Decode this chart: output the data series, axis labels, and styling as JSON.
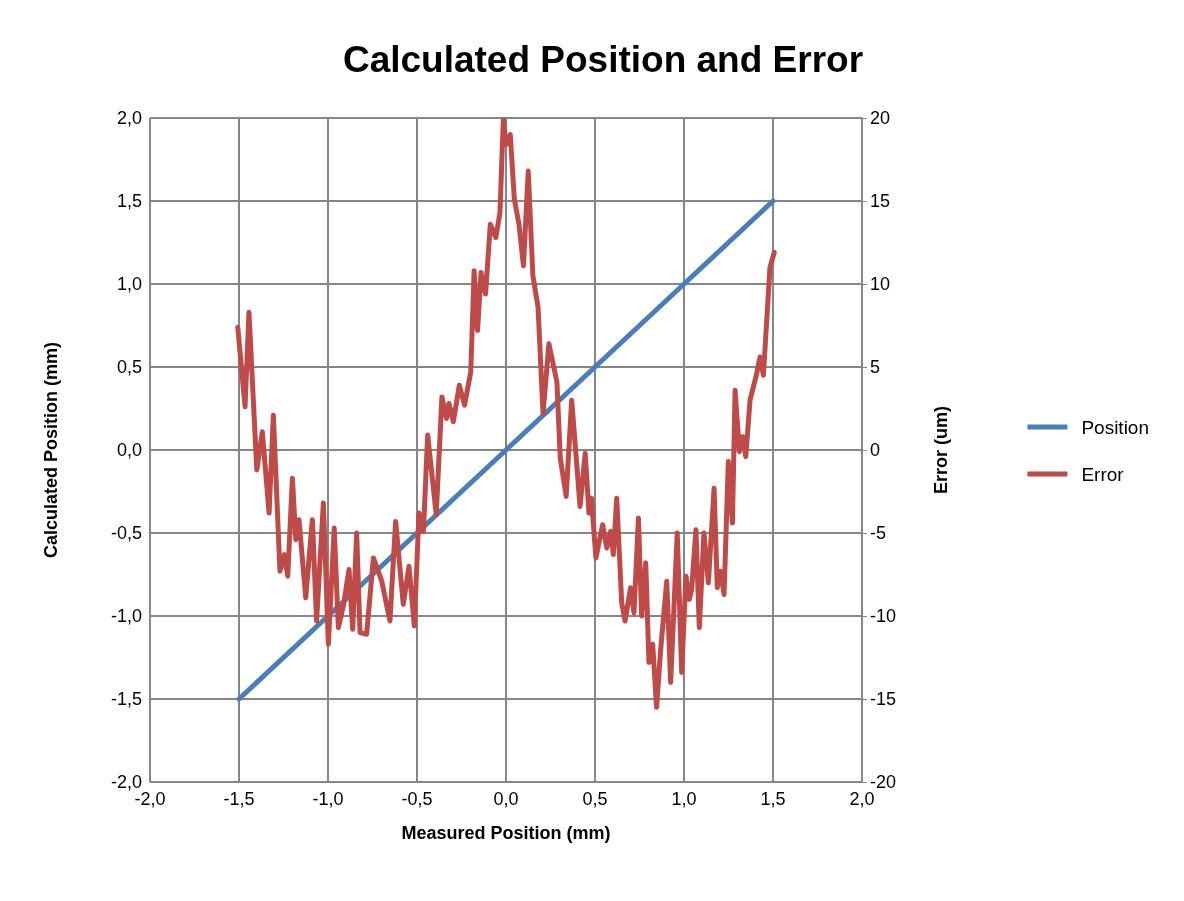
{
  "chart_data": {
    "type": "line",
    "title": "Calculated Position and Error",
    "xlabel": "Measured Position (mm)",
    "ylabel": "Calculated Position (mm)",
    "y2label": "Error (um)",
    "xlim": [
      -2,
      2
    ],
    "ylim": [
      -2,
      2
    ],
    "y2lim": [
      -20,
      20
    ],
    "xticks": [
      {
        "value": -2,
        "label": "-2,0"
      },
      {
        "value": -1.5,
        "label": "-1,5"
      },
      {
        "value": -1,
        "label": "-1,0"
      },
      {
        "value": -0.5,
        "label": "-0,5"
      },
      {
        "value": 0,
        "label": "0,0"
      },
      {
        "value": 0.5,
        "label": "0,5"
      },
      {
        "value": 1,
        "label": "1,0"
      },
      {
        "value": 1.5,
        "label": "1,5"
      },
      {
        "value": 2,
        "label": "2,0"
      }
    ],
    "yticks": [
      {
        "value": -2,
        "label": "-2,0"
      },
      {
        "value": -1.5,
        "label": "-1,5"
      },
      {
        "value": -1,
        "label": "-1,0"
      },
      {
        "value": -0.5,
        "label": "-0,5"
      },
      {
        "value": 0,
        "label": "0,0"
      },
      {
        "value": 0.5,
        "label": "0,5"
      },
      {
        "value": 1,
        "label": "1,0"
      },
      {
        "value": 1.5,
        "label": "1,5"
      },
      {
        "value": 2,
        "label": "2,0"
      }
    ],
    "y2ticks": [
      -20,
      -15,
      -10,
      -5,
      0,
      5,
      10,
      15,
      20
    ],
    "grid": true,
    "legend": "right",
    "marker": "none",
    "line_style": "solid",
    "series": [
      {
        "name": "Position",
        "color": "#4a7ebb",
        "x": [
          -1.5,
          -1,
          -0.5,
          0,
          0.5,
          1,
          1.5
        ],
        "values": [
          -1.5,
          -1,
          -0.5,
          0,
          0.5,
          1,
          1.5
        ]
      },
      {
        "name": "Error",
        "color": "#be4b48",
        "axis": "y2",
        "x": [
          -1.507,
          -1.466,
          -1.444,
          -1.4,
          -1.369,
          -1.331,
          -1.307,
          -1.27,
          -1.245,
          -1.226,
          -1.2,
          -1.181,
          -1.163,
          -1.125,
          -1.088,
          -1.064,
          -1.026,
          -0.998,
          -0.965,
          -0.942,
          -0.914,
          -0.882,
          -0.861,
          -0.839,
          -0.82,
          -0.783,
          -0.745,
          -0.698,
          -0.652,
          -0.62,
          -0.577,
          -0.545,
          -0.515,
          -0.489,
          -0.464,
          -0.44,
          -0.392,
          -0.36,
          -0.334,
          -0.32,
          -0.296,
          -0.262,
          -0.233,
          -0.198,
          -0.179,
          -0.16,
          -0.14,
          -0.115,
          -0.088,
          -0.057,
          -0.034,
          -0.015,
          0.001,
          0.024,
          0.047,
          0.073,
          0.098,
          0.125,
          0.151,
          0.18,
          0.208,
          0.241,
          0.286,
          0.305,
          0.338,
          0.369,
          0.416,
          0.445,
          0.466,
          0.48,
          0.505,
          0.543,
          0.566,
          0.588,
          0.603,
          0.622,
          0.65,
          0.669,
          0.7,
          0.719,
          0.744,
          0.762,
          0.785,
          0.803,
          0.824,
          0.846,
          0.869,
          0.903,
          0.925,
          0.962,
          0.987,
          1.011,
          1.03,
          1.043,
          1.067,
          1.086,
          1.112,
          1.137,
          1.169,
          1.187,
          1.206,
          1.225,
          1.249,
          1.272,
          1.287,
          1.311,
          1.33,
          1.347,
          1.371,
          1.404,
          1.427,
          1.446,
          1.483,
          1.507
        ],
        "values": [
          7.4,
          2.6,
          8.3,
          -1.2,
          1.1,
          -3.8,
          2.1,
          -7.3,
          -6.3,
          -7.6,
          -1.7,
          -5.4,
          -4.2,
          -8.9,
          -4.2,
          -10.3,
          -3.2,
          -11.7,
          -4.7,
          -10.7,
          -9.4,
          -7.2,
          -10.8,
          -5,
          -11,
          -11.1,
          -6.5,
          -7.9,
          -10.3,
          -4.3,
          -9.3,
          -7,
          -10.6,
          -3.8,
          -4.9,
          0.9,
          -3.9,
          3.2,
          1.9,
          2.8,
          1.7,
          3.9,
          2.7,
          4.7,
          10.8,
          7.2,
          10.7,
          9.4,
          13.6,
          12.8,
          14.3,
          19.9,
          18.4,
          19,
          15.1,
          13.6,
          11.1,
          16.8,
          10.5,
          8.6,
          2.2,
          6.4,
          4.1,
          -0.5,
          -2.8,
          3,
          -3.4,
          -0.2,
          -3.8,
          -2.9,
          -6.5,
          -4.5,
          -5.9,
          -4.9,
          -6.3,
          -2.9,
          -9.2,
          -10.3,
          -8.3,
          -9.8,
          -4.1,
          -10,
          -6.8,
          -12.8,
          -11.7,
          -15.5,
          -12,
          -7.9,
          -14,
          -5,
          -13.4,
          -7.6,
          -9,
          -8.4,
          -4.8,
          -10.7,
          -5,
          -8,
          -2.3,
          -8.3,
          -7.3,
          -8.7,
          -0.7,
          -4.4,
          3.6,
          -0.1,
          0.8,
          -0.4,
          3,
          4.4,
          5.6,
          4.5,
          11,
          11.9
        ]
      }
    ]
  }
}
